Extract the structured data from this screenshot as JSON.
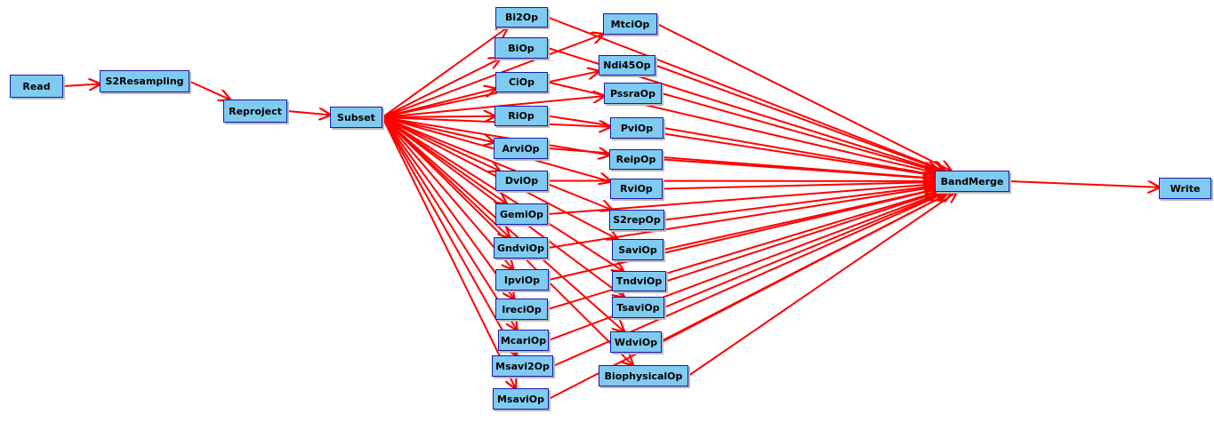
{
  "graph": {
    "nodes": [
      {
        "id": "Read",
        "label": "Read"
      },
      {
        "id": "S2Resampling",
        "label": "S2Resampling"
      },
      {
        "id": "Reproject",
        "label": "Reproject"
      },
      {
        "id": "Subset",
        "label": "Subset"
      },
      {
        "id": "Bi2Op",
        "label": "Bi2Op"
      },
      {
        "id": "BiOp",
        "label": "BiOp"
      },
      {
        "id": "CiOp",
        "label": "CiOp"
      },
      {
        "id": "RiOp",
        "label": "RiOp"
      },
      {
        "id": "ArviOp",
        "label": "ArviOp"
      },
      {
        "id": "DviOp",
        "label": "DviOp"
      },
      {
        "id": "GemiOp",
        "label": "GemiOp"
      },
      {
        "id": "GndviOp",
        "label": "GndviOp"
      },
      {
        "id": "IpviOp",
        "label": "IpviOp"
      },
      {
        "id": "IreciOp",
        "label": "IreciOp"
      },
      {
        "id": "McariOp",
        "label": "McariOp"
      },
      {
        "id": "Msavi2Op",
        "label": "Msavi2Op"
      },
      {
        "id": "MsaviOp",
        "label": "MsaviOp"
      },
      {
        "id": "MtciOp",
        "label": "MtciOp"
      },
      {
        "id": "Ndi45Op",
        "label": "Ndi45Op"
      },
      {
        "id": "PssraOp",
        "label": "PssraOp"
      },
      {
        "id": "PviOp",
        "label": "PviOp"
      },
      {
        "id": "ReipOp",
        "label": "ReipOp"
      },
      {
        "id": "RviOp",
        "label": "RviOp"
      },
      {
        "id": "S2repOp",
        "label": "S2repOp"
      },
      {
        "id": "SaviOp",
        "label": "SaviOp"
      },
      {
        "id": "TndviOp",
        "label": "TndviOp"
      },
      {
        "id": "TsaviOp",
        "label": "TsaviOp"
      },
      {
        "id": "WdviOp",
        "label": "WdviOp"
      },
      {
        "id": "BiophysicalOp",
        "label": "BiophysicalOp"
      },
      {
        "id": "BandMerge",
        "label": "BandMerge"
      },
      {
        "id": "Write",
        "label": "Write"
      }
    ],
    "edges": [
      [
        "Read",
        "S2Resampling"
      ],
      [
        "S2Resampling",
        "Reproject"
      ],
      [
        "Reproject",
        "Subset"
      ],
      [
        "Subset",
        "Bi2Op"
      ],
      [
        "Subset",
        "BiOp"
      ],
      [
        "Subset",
        "CiOp"
      ],
      [
        "Subset",
        "RiOp"
      ],
      [
        "Subset",
        "ArviOp"
      ],
      [
        "Subset",
        "DviOp"
      ],
      [
        "Subset",
        "GemiOp"
      ],
      [
        "Subset",
        "GndviOp"
      ],
      [
        "Subset",
        "IpviOp"
      ],
      [
        "Subset",
        "IreciOp"
      ],
      [
        "Subset",
        "McariOp"
      ],
      [
        "Subset",
        "Msavi2Op"
      ],
      [
        "Subset",
        "MsaviOp"
      ],
      [
        "Subset",
        "MtciOp"
      ],
      [
        "Subset",
        "Ndi45Op"
      ],
      [
        "Subset",
        "PssraOp"
      ],
      [
        "Subset",
        "PviOp"
      ],
      [
        "Subset",
        "ReipOp"
      ],
      [
        "Subset",
        "RviOp"
      ],
      [
        "Subset",
        "S2repOp"
      ],
      [
        "Subset",
        "SaviOp"
      ],
      [
        "Subset",
        "TndviOp"
      ],
      [
        "Subset",
        "TsaviOp"
      ],
      [
        "Subset",
        "WdviOp"
      ],
      [
        "Subset",
        "BiophysicalOp"
      ],
      [
        "Bi2Op",
        "BandMerge"
      ],
      [
        "BiOp",
        "BandMerge"
      ],
      [
        "CiOp",
        "BandMerge"
      ],
      [
        "RiOp",
        "BandMerge"
      ],
      [
        "ArviOp",
        "BandMerge"
      ],
      [
        "DviOp",
        "BandMerge"
      ],
      [
        "GemiOp",
        "BandMerge"
      ],
      [
        "GndviOp",
        "BandMerge"
      ],
      [
        "IpviOp",
        "BandMerge"
      ],
      [
        "IreciOp",
        "BandMerge"
      ],
      [
        "McariOp",
        "BandMerge"
      ],
      [
        "Msavi2Op",
        "BandMerge"
      ],
      [
        "MsaviOp",
        "BandMerge"
      ],
      [
        "MtciOp",
        "BandMerge"
      ],
      [
        "Ndi45Op",
        "BandMerge"
      ],
      [
        "PssraOp",
        "BandMerge"
      ],
      [
        "PviOp",
        "BandMerge"
      ],
      [
        "ReipOp",
        "BandMerge"
      ],
      [
        "RviOp",
        "BandMerge"
      ],
      [
        "S2repOp",
        "BandMerge"
      ],
      [
        "SaviOp",
        "BandMerge"
      ],
      [
        "TndviOp",
        "BandMerge"
      ],
      [
        "TsaviOp",
        "BandMerge"
      ],
      [
        "WdviOp",
        "BandMerge"
      ],
      [
        "BiophysicalOp",
        "BandMerge"
      ],
      [
        "BandMerge",
        "Write"
      ]
    ],
    "colors": {
      "edge": "#ff0000",
      "node_fill": "#7fcaf0",
      "node_border": "#1a1aa8"
    }
  }
}
